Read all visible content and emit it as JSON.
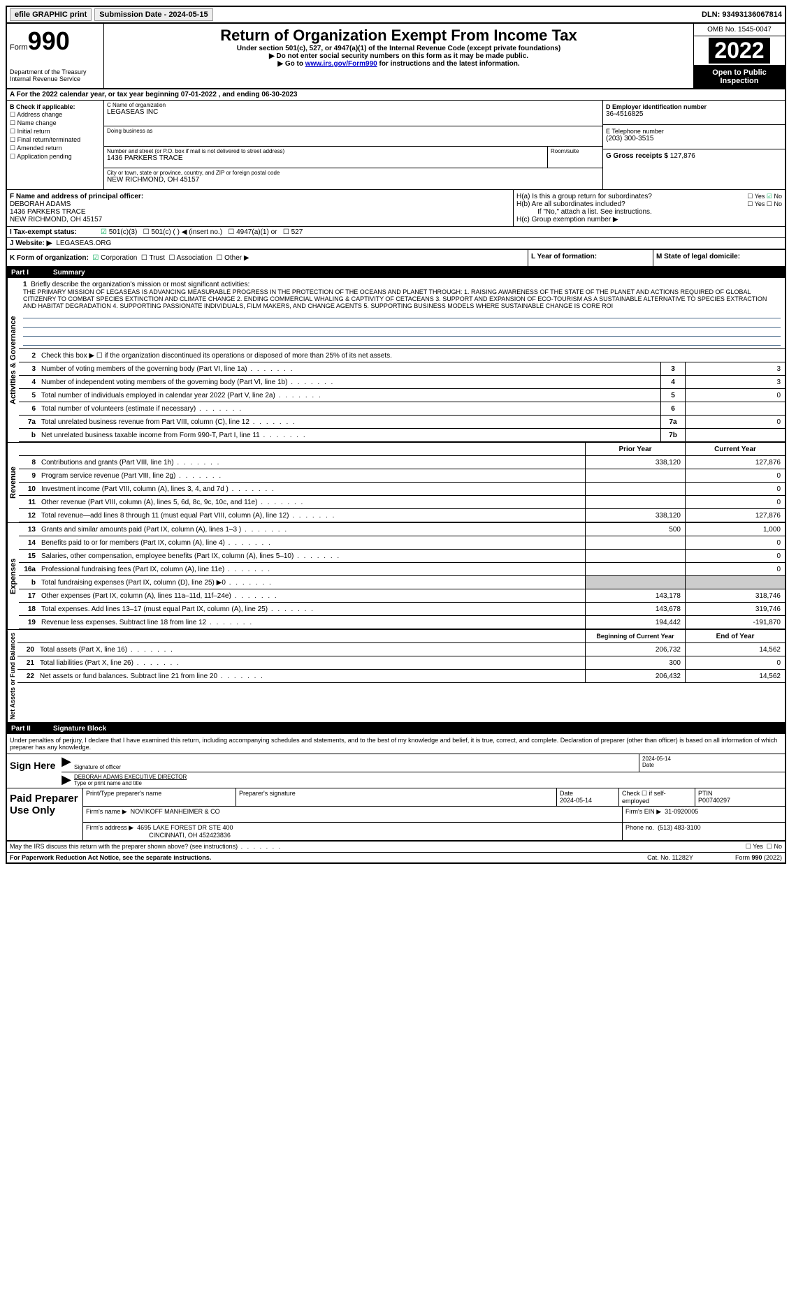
{
  "topbar": {
    "efile": "efile GRAPHIC print",
    "submission": "Submission Date - 2024-05-15",
    "dln": "DLN: 93493136067814"
  },
  "header": {
    "form_word": "Form",
    "form_num": "990",
    "dept": "Department of the Treasury",
    "irs": "Internal Revenue Service",
    "title": "Return of Organization Exempt From Income Tax",
    "sub1": "Under section 501(c), 527, or 4947(a)(1) of the Internal Revenue Code (except private foundations)",
    "sub2": "▶ Do not enter social security numbers on this form as it may be made public.",
    "sub3_pre": "▶ Go to ",
    "sub3_link": "www.irs.gov/Form990",
    "sub3_post": " for instructions and the latest information.",
    "omb": "OMB No. 1545-0047",
    "year": "2022",
    "open": "Open to Public Inspection"
  },
  "row_a": "A   For the 2022 calendar year, or tax year beginning 07-01-2022   , and ending 06-30-2023",
  "col_b": {
    "title": "B Check if applicable:",
    "addr": "Address change",
    "name": "Name change",
    "init": "Initial return",
    "final": "Final return/terminated",
    "amend": "Amended return",
    "app": "Application pending"
  },
  "box_c": {
    "label": "C Name of organization",
    "val": "LEGASEAS INC",
    "dba_label": "Doing business as"
  },
  "box_addr": {
    "street_label": "Number and street (or P.O. box if mail is not delivered to street address)",
    "street": "1436 PARKERS TRACE",
    "room_label": "Room/suite",
    "city_label": "City or town, state or province, country, and ZIP or foreign postal code",
    "city": "NEW RICHMOND, OH  45157"
  },
  "box_d": {
    "label": "D Employer identification number",
    "val": "36-4516825"
  },
  "box_e": {
    "label": "E Telephone number",
    "val": "(203) 300-3515"
  },
  "box_g": {
    "label": "G Gross receipts $",
    "val": "127,876"
  },
  "box_f": {
    "label": "F  Name and address of principal officer:",
    "name": "DEBORAH ADAMS",
    "street": "1436 PARKERS TRACE",
    "city": "NEW RICHMOND, OH  45157"
  },
  "box_h": {
    "ha": "H(a)  Is this a group return for subordinates?",
    "hb": "H(b)  Are all subordinates included?",
    "hb_note": "If \"No,\" attach a list. See instructions.",
    "hc": "H(c)  Group exemption number ▶",
    "yes": "Yes",
    "no": "No"
  },
  "row_i": {
    "label": "I   Tax-exempt status:",
    "o1": "501(c)(3)",
    "o2": "501(c) (  ) ◀ (insert no.)",
    "o3": "4947(a)(1) or",
    "o4": "527"
  },
  "row_j": {
    "label": "J   Website: ▶",
    "val": "LEGASEAS.ORG"
  },
  "row_k": {
    "label": "K Form of organization:",
    "corp": "Corporation",
    "trust": "Trust",
    "assoc": "Association",
    "other": "Other ▶"
  },
  "row_l": "L Year of formation:",
  "row_m": "M State of legal domicile:",
  "part1": {
    "label": "Part I",
    "title": "Summary"
  },
  "vtext": {
    "gov": "Activities & Governance",
    "rev": "Revenue",
    "exp": "Expenses",
    "net": "Net Assets or Fund Balances"
  },
  "mission": {
    "num": "1",
    "label": "Briefly describe the organization's mission or most significant activities:",
    "text": "THE PRIMARY MISSION OF LEGASEAS IS ADVANCING MEASURABLE PROGRESS IN THE PROTECTION OF THE OCEANS AND PLANET THROUGH: 1. RAISING AWARENESS OF THE STATE OF THE PLANET AND ACTIONS REQUIRED OF GLOBAL CITIZENRY TO COMBAT SPECIES EXTINCTION AND CLIMATE CHANGE 2. ENDING COMMERCIAL WHALING & CAPTIVITY OF CETACEANS 3. SUPPORT AND EXPANSION OF ECO-TOURISM AS A SUSTAINABLE ALTERNATIVE TO SPECIES EXTRACTION AND HABITAT DEGRADATION 4. SUPPORTING PASSIONATE INDIVIDUALS, FILM MAKERS, AND CHANGE AGENTS 5. SUPPORTING BUSINESS MODELS WHERE SUSTAINABLE CHANGE IS CORE ROI"
  },
  "lines_gov": [
    {
      "n": "2",
      "label": "Check this box ▶ ☐ if the organization discontinued its operations or disposed of more than 25% of its net assets."
    },
    {
      "n": "3",
      "label": "Number of voting members of the governing body (Part VI, line 1a)",
      "box": "3",
      "val": "3"
    },
    {
      "n": "4",
      "label": "Number of independent voting members of the governing body (Part VI, line 1b)",
      "box": "4",
      "val": "3"
    },
    {
      "n": "5",
      "label": "Total number of individuals employed in calendar year 2022 (Part V, line 2a)",
      "box": "5",
      "val": "0"
    },
    {
      "n": "6",
      "label": "Total number of volunteers (estimate if necessary)",
      "box": "6",
      "val": ""
    },
    {
      "n": "7a",
      "label": "Total unrelated business revenue from Part VIII, column (C), line 12",
      "box": "7a",
      "val": "0"
    },
    {
      "n": "b",
      "label": "Net unrelated business taxable income from Form 990-T, Part I, line 11",
      "box": "7b",
      "val": ""
    }
  ],
  "colheads": {
    "prior": "Prior Year",
    "current": "Current Year"
  },
  "lines_rev": [
    {
      "n": "8",
      "label": "Contributions and grants (Part VIII, line 1h)",
      "p": "338,120",
      "c": "127,876"
    },
    {
      "n": "9",
      "label": "Program service revenue (Part VIII, line 2g)",
      "p": "",
      "c": "0"
    },
    {
      "n": "10",
      "label": "Investment income (Part VIII, column (A), lines 3, 4, and 7d )",
      "p": "",
      "c": "0"
    },
    {
      "n": "11",
      "label": "Other revenue (Part VIII, column (A), lines 5, 6d, 8c, 9c, 10c, and 11e)",
      "p": "",
      "c": "0"
    },
    {
      "n": "12",
      "label": "Total revenue—add lines 8 through 11 (must equal Part VIII, column (A), line 12)",
      "p": "338,120",
      "c": "127,876"
    }
  ],
  "lines_exp": [
    {
      "n": "13",
      "label": "Grants and similar amounts paid (Part IX, column (A), lines 1–3 )",
      "p": "500",
      "c": "1,000"
    },
    {
      "n": "14",
      "label": "Benefits paid to or for members (Part IX, column (A), line 4)",
      "p": "",
      "c": "0"
    },
    {
      "n": "15",
      "label": "Salaries, other compensation, employee benefits (Part IX, column (A), lines 5–10)",
      "p": "",
      "c": "0"
    },
    {
      "n": "16a",
      "label": "Professional fundraising fees (Part IX, column (A), line 11e)",
      "p": "",
      "c": "0"
    },
    {
      "n": "b",
      "label": "Total fundraising expenses (Part IX, column (D), line 25) ▶0",
      "p": "grey",
      "c": "grey"
    },
    {
      "n": "17",
      "label": "Other expenses (Part IX, column (A), lines 11a–11d, 11f–24e)",
      "p": "143,178",
      "c": "318,746"
    },
    {
      "n": "18",
      "label": "Total expenses. Add lines 13–17 (must equal Part IX, column (A), line 25)",
      "p": "143,678",
      "c": "319,746"
    },
    {
      "n": "19",
      "label": "Revenue less expenses. Subtract line 18 from line 12",
      "p": "194,442",
      "c": "-191,870"
    }
  ],
  "colheads2": {
    "begin": "Beginning of Current Year",
    "end": "End of Year"
  },
  "lines_net": [
    {
      "n": "20",
      "label": "Total assets (Part X, line 16)",
      "p": "206,732",
      "c": "14,562"
    },
    {
      "n": "21",
      "label": "Total liabilities (Part X, line 26)",
      "p": "300",
      "c": "0"
    },
    {
      "n": "22",
      "label": "Net assets or fund balances. Subtract line 21 from line 20",
      "p": "206,432",
      "c": "14,562"
    }
  ],
  "part2": {
    "label": "Part II",
    "title": "Signature Block"
  },
  "penalties": "Under penalties of perjury, I declare that I have examined this return, including accompanying schedules and statements, and to the best of my knowledge and belief, it is true, correct, and complete. Declaration of preparer (other than officer) is based on all information of which preparer has any knowledge.",
  "sign": {
    "here": "Sign Here",
    "sig_label": "Signature of officer",
    "date": "2024-05-14",
    "date_label": "Date",
    "name": "DEBORAH ADAMS  EXECUTIVE DIRECTOR",
    "name_label": "Type or print name and title"
  },
  "prep": {
    "title": "Paid Preparer Use Only",
    "pname_label": "Print/Type preparer's name",
    "psig_label": "Preparer's signature",
    "pdate_label": "Date",
    "pdate": "2024-05-14",
    "check_label": "Check ☐ if self-employed",
    "ptin_label": "PTIN",
    "ptin": "P00740297",
    "firm_label": "Firm's name    ▶",
    "firm": "NOVIKOFF MANHEIMER & CO",
    "ein_label": "Firm's EIN ▶",
    "ein": "31-0920005",
    "addr_label": "Firm's address ▶",
    "addr1": "4695 LAKE FOREST DR STE 400",
    "addr2": "CINCINNATI, OH  452423836",
    "phone_label": "Phone no.",
    "phone": "(513) 483-3100"
  },
  "footer": {
    "discuss": "May the IRS discuss this return with the preparer shown above? (see instructions)",
    "yes": "Yes",
    "no": "No",
    "pra": "For Paperwork Reduction Act Notice, see the separate instructions.",
    "cat": "Cat. No. 11282Y",
    "form": "Form 990 (2022)"
  }
}
